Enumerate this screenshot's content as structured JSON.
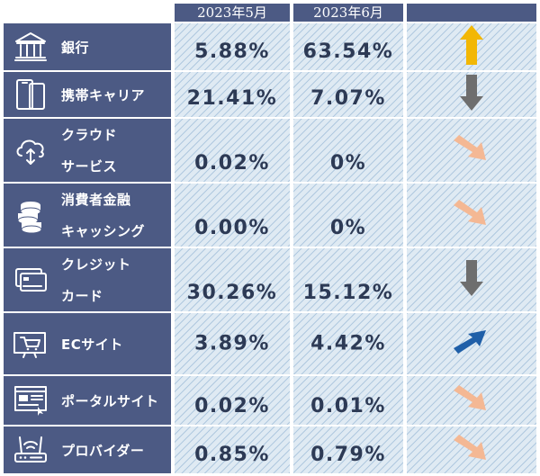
{
  "headers": {
    "may": "2023年5月",
    "june": "2023年6月",
    "trend": ""
  },
  "rows": [
    {
      "icon": "bank-icon",
      "label_lines": [
        "銀行"
      ],
      "may": "5.88%",
      "june": "63.54%",
      "trend": "up",
      "trend_color": "#f2b705"
    },
    {
      "icon": "mobile-phone-icon",
      "label_lines": [
        "携帯キャリア"
      ],
      "may": "21.41%",
      "june": "7.07%",
      "trend": "down",
      "trend_color": "#6e6e6e"
    },
    {
      "icon": "cloud-icon",
      "label_lines": [
        "クラウド",
        "サービス"
      ],
      "may": "0.02%",
      "june": "0%",
      "trend": "down-right",
      "trend_color": "#f4b894"
    },
    {
      "icon": "coin-stack-icon",
      "label_lines": [
        "消費者金融",
        "キャッシング"
      ],
      "may": "0.00%",
      "june": "0%",
      "trend": "down-right",
      "trend_color": "#f4b894"
    },
    {
      "icon": "credit-card-icon",
      "label_lines": [
        "クレジット",
        "カード"
      ],
      "may": "30.26%",
      "june": "15.12%",
      "trend": "down",
      "trend_color": "#6e6e6e"
    },
    {
      "icon": "shopping-cart-icon",
      "label_lines": [
        "ECサイト"
      ],
      "may": "3.89%",
      "june": "4.42%",
      "trend": "up-right",
      "trend_color": "#1f5fa8"
    },
    {
      "icon": "web-portal-icon",
      "label_lines": [
        "ポータルサイト"
      ],
      "may": "0.02%",
      "june": "0.01%",
      "trend": "down-right",
      "trend_color": "#f4b894"
    },
    {
      "icon": "router-icon",
      "label_lines": [
        "プロバイダー"
      ],
      "may": "0.85%",
      "june": "0.79%",
      "trend": "down-right",
      "trend_color": "#f4b894"
    }
  ]
}
